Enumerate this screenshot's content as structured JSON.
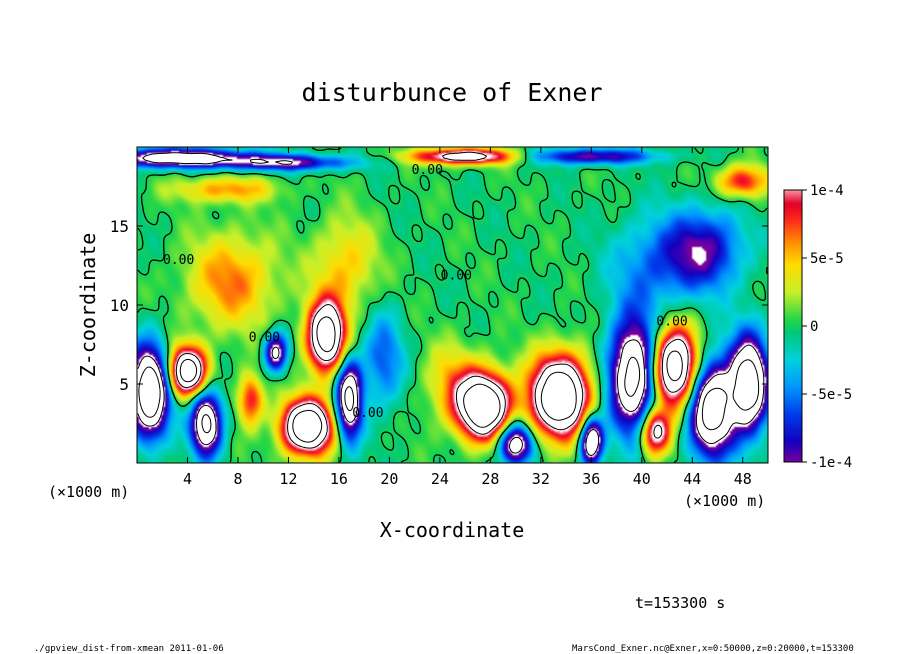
{
  "chart_data": {
    "type": "heatmap",
    "title": "disturbunce of Exner",
    "xlabel": "X-coordinate",
    "ylabel": "Z-coordinate",
    "x_unit_label": "(×1000 m)",
    "y_unit_label": "(×1000 m)",
    "xlim": [
      0,
      50
    ],
    "ylim": [
      0,
      20
    ],
    "x_ticks": [
      4,
      8,
      12,
      16,
      20,
      24,
      28,
      32,
      36,
      40,
      44,
      48
    ],
    "y_ticks": [
      5,
      10,
      15
    ],
    "colorbar": {
      "range": [
        -0.0001,
        0.0001
      ],
      "ticks": [
        {
          "value": 0.0001,
          "label": "1e-4"
        },
        {
          "value": 5e-05,
          "label": "5e-5"
        },
        {
          "value": 0,
          "label": "0"
        },
        {
          "value": -5e-05,
          "label": "-5e-5"
        },
        {
          "value": -0.0001,
          "label": "-1e-4"
        }
      ]
    },
    "contour_labels": [
      {
        "text": "0.00",
        "x": 23,
        "z": 18.3
      },
      {
        "text": "0.00",
        "x": 3.3,
        "z": 12.6
      },
      {
        "text": "0.00",
        "x": 10.1,
        "z": 7.7
      },
      {
        "text": "0.00",
        "x": 18.3,
        "z": 2.9
      },
      {
        "text": "0.00",
        "x": 25.3,
        "z": 11.6
      },
      {
        "text": "0.00",
        "x": 42.4,
        "z": 8.7
      }
    ],
    "features": [
      {
        "x": 1.0,
        "z": 4.5,
        "sign": -1,
        "strength": 2.2,
        "rx": 1.5,
        "rz": 2.8
      },
      {
        "x": 4.0,
        "z": 5.8,
        "sign": 1,
        "strength": 2.0,
        "rx": 1.5,
        "rz": 1.5
      },
      {
        "x": 5.5,
        "z": 2.5,
        "sign": -1,
        "strength": 1.8,
        "rx": 1.2,
        "rz": 2.0
      },
      {
        "x": 7.5,
        "z": 11.5,
        "sign": 1,
        "strength": 0.65,
        "rx": 3.5,
        "rz": 3.0
      },
      {
        "x": 9.0,
        "z": 4.0,
        "sign": 1,
        "strength": 0.9,
        "rx": 1.0,
        "rz": 1.6
      },
      {
        "x": 11.0,
        "z": 7.0,
        "sign": -1,
        "strength": 1.3,
        "rx": 0.9,
        "rz": 1.2
      },
      {
        "x": 13.5,
        "z": 2.3,
        "sign": 1,
        "strength": 2.2,
        "rx": 2.0,
        "rz": 1.7
      },
      {
        "x": 15.0,
        "z": 8.0,
        "sign": 1,
        "strength": 2.0,
        "rx": 1.5,
        "rz": 2.2
      },
      {
        "x": 16.5,
        "z": 12.5,
        "sign": 1,
        "strength": 0.5,
        "rx": 2.5,
        "rz": 3.0
      },
      {
        "x": 16.8,
        "z": 4.0,
        "sign": -1,
        "strength": 1.8,
        "rx": 1.0,
        "rz": 2.5
      },
      {
        "x": 19.5,
        "z": 6.5,
        "sign": -1,
        "strength": 0.6,
        "rx": 1.6,
        "rz": 3.0
      },
      {
        "x": 25.0,
        "z": 5.0,
        "sign": 1,
        "strength": 0.5,
        "rx": 2.2,
        "rz": 2.5
      },
      {
        "x": 27.5,
        "z": 3.6,
        "sign": 1,
        "strength": 2.3,
        "rx": 2.0,
        "rz": 2.0
      },
      {
        "x": 30.0,
        "z": 1.2,
        "sign": -1,
        "strength": 1.6,
        "rx": 1.3,
        "rz": 1.3
      },
      {
        "x": 33.5,
        "z": 4.2,
        "sign": 1,
        "strength": 2.3,
        "rx": 2.3,
        "rz": 2.5
      },
      {
        "x": 36.0,
        "z": 1.4,
        "sign": -1,
        "strength": 1.8,
        "rx": 0.9,
        "rz": 1.5
      },
      {
        "x": 39.5,
        "z": 5.5,
        "sign": -1,
        "strength": 2.0,
        "rx": 2.0,
        "rz": 3.5
      },
      {
        "x": 42.5,
        "z": 6.0,
        "sign": 1,
        "strength": 2.2,
        "rx": 2.0,
        "rz": 2.5
      },
      {
        "x": 41.0,
        "z": 2.0,
        "sign": 1,
        "strength": 1.5,
        "rx": 1.2,
        "rz": 1.5
      },
      {
        "x": 45.5,
        "z": 3.5,
        "sign": -1,
        "strength": 2.0,
        "rx": 1.8,
        "rz": 3.0
      },
      {
        "x": 48.5,
        "z": 5.0,
        "sign": -1,
        "strength": 2.0,
        "rx": 1.5,
        "rz": 3.0
      },
      {
        "x": 45.0,
        "z": 13.5,
        "sign": -1,
        "strength": 0.9,
        "rx": 3.0,
        "rz": 2.5
      },
      {
        "x": 41.0,
        "z": 12.5,
        "sign": -1,
        "strength": 0.5,
        "rx": 3.5,
        "rz": 3.0
      },
      {
        "x": 3.0,
        "z": 19.3,
        "sign": -1,
        "strength": 1.5,
        "rx": 6.0,
        "rz": 0.6
      },
      {
        "x": 12.0,
        "z": 19.0,
        "sign": -1,
        "strength": 1.0,
        "rx": 5.0,
        "rz": 0.5
      },
      {
        "x": 26.0,
        "z": 19.4,
        "sign": 1,
        "strength": 1.5,
        "rx": 4.0,
        "rz": 0.5
      },
      {
        "x": 36.0,
        "z": 19.4,
        "sign": -1,
        "strength": 1.0,
        "rx": 5.0,
        "rz": 0.5
      },
      {
        "x": 48.0,
        "z": 17.8,
        "sign": 1,
        "strength": 0.9,
        "rx": 2.0,
        "rz": 1.0
      },
      {
        "x": 7.0,
        "z": 17.3,
        "sign": 1,
        "strength": 0.6,
        "rx": 4.0,
        "rz": 0.8
      }
    ]
  },
  "footer": {
    "time_label": "t=153300 s",
    "script_label": "./gpview_dist-from-xmean  2011-01-06",
    "source_label": "MarsCond_Exner.nc@Exner,x=0:50000,z=0:20000,t=153300"
  }
}
